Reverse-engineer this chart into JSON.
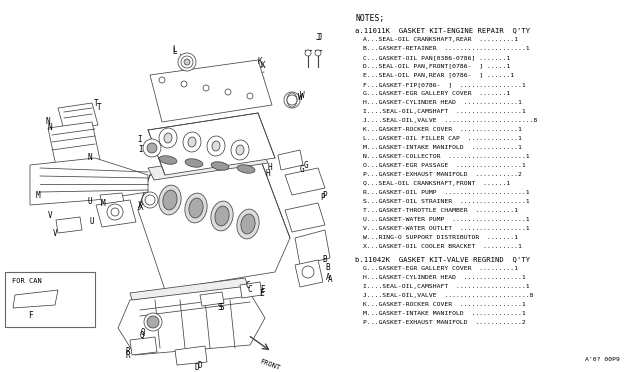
{
  "bg_color": "#ffffff",
  "notes_title": "NOTES;",
  "kit_a_header": "a.11011K  GASKET KIT-ENGINE REPAIR  Q'TY",
  "kit_a_items": [
    "A...SEAL-OIL CRANKSHAFT,REAR  .........1",
    "B...GASKET-RETAINER  .....................1",
    "C...GASKET-OIL PAN[0386-0786] .......1",
    "D...SEAL-OIL PAN,FRONT[0786-  ] .....1",
    "E...SEAL-OIL PAN,REAR [0786-  ] ......1",
    "F...GASKET-FIP[0786-  ]  ................1",
    "G...GASKET-EGR GALLERY COVER  .......1",
    "H...GASKET-CYLINDER HEAD  ..............1",
    "I....SEAL-OIL,CAMSHAFT  .................1",
    "J....SEAL-OIL,VALVE  .......................8",
    "K...GASKET-ROCKER COVER  ...............1",
    "L...GASKET-OIL FILLER CAP  .............1",
    "M...GASKET-INTAKE MANIFOLD  ............1",
    "N...GASKET-COLLECTOR  ....................1",
    "O...GASKET-EGR PASSAGE  .................1",
    "P...GASKET-EXHAUST MANIFOLD  ...........2",
    "Q...SEAL-OIL CRANKSHAFT,FRONT  ......1",
    "R...GASKET-OIL PUMP  .....................1",
    "S...GASKET-OIL STRAINER  .................1",
    "T...GASKET-THROTTLE CHAMBER  ..........1",
    "U...GASKET-WATER PUMP  ...................1",
    "V...GASKET-WATER OUTLET  .................1",
    "W...RING-O SUPPORT DISTRIBUTOR  .......1",
    "X...GASKET-OIL COOLER BRACKET  .........1"
  ],
  "kit_b_header": "b.11042K  GASKET KIT-VALVE REGRIND  Q'TY",
  "kit_b_items": [
    "G...GASKET-EGR GALLERY COVER  .........1",
    "H...GASKET-CYLINDER HEAD  ...............1",
    "I....SEAL-OIL,CAMSHAFT  ..................1",
    "J....SEAL-OIL,VALVE  ......................8",
    "K...GASKET-ROCKER COVER  ................1",
    "M...GASKET-INTAKE MANIFOLD  .............1",
    "P...GASKET-EXHAUST MANIFOLD  ............2"
  ],
  "footer": "A'0? 00P9",
  "text_color": "#000000",
  "line_color": "#444444",
  "lw": 0.55,
  "font_size_header": 5.2,
  "font_size_items": 4.6,
  "font_size_notes": 5.8,
  "font_size_label": 5.5
}
